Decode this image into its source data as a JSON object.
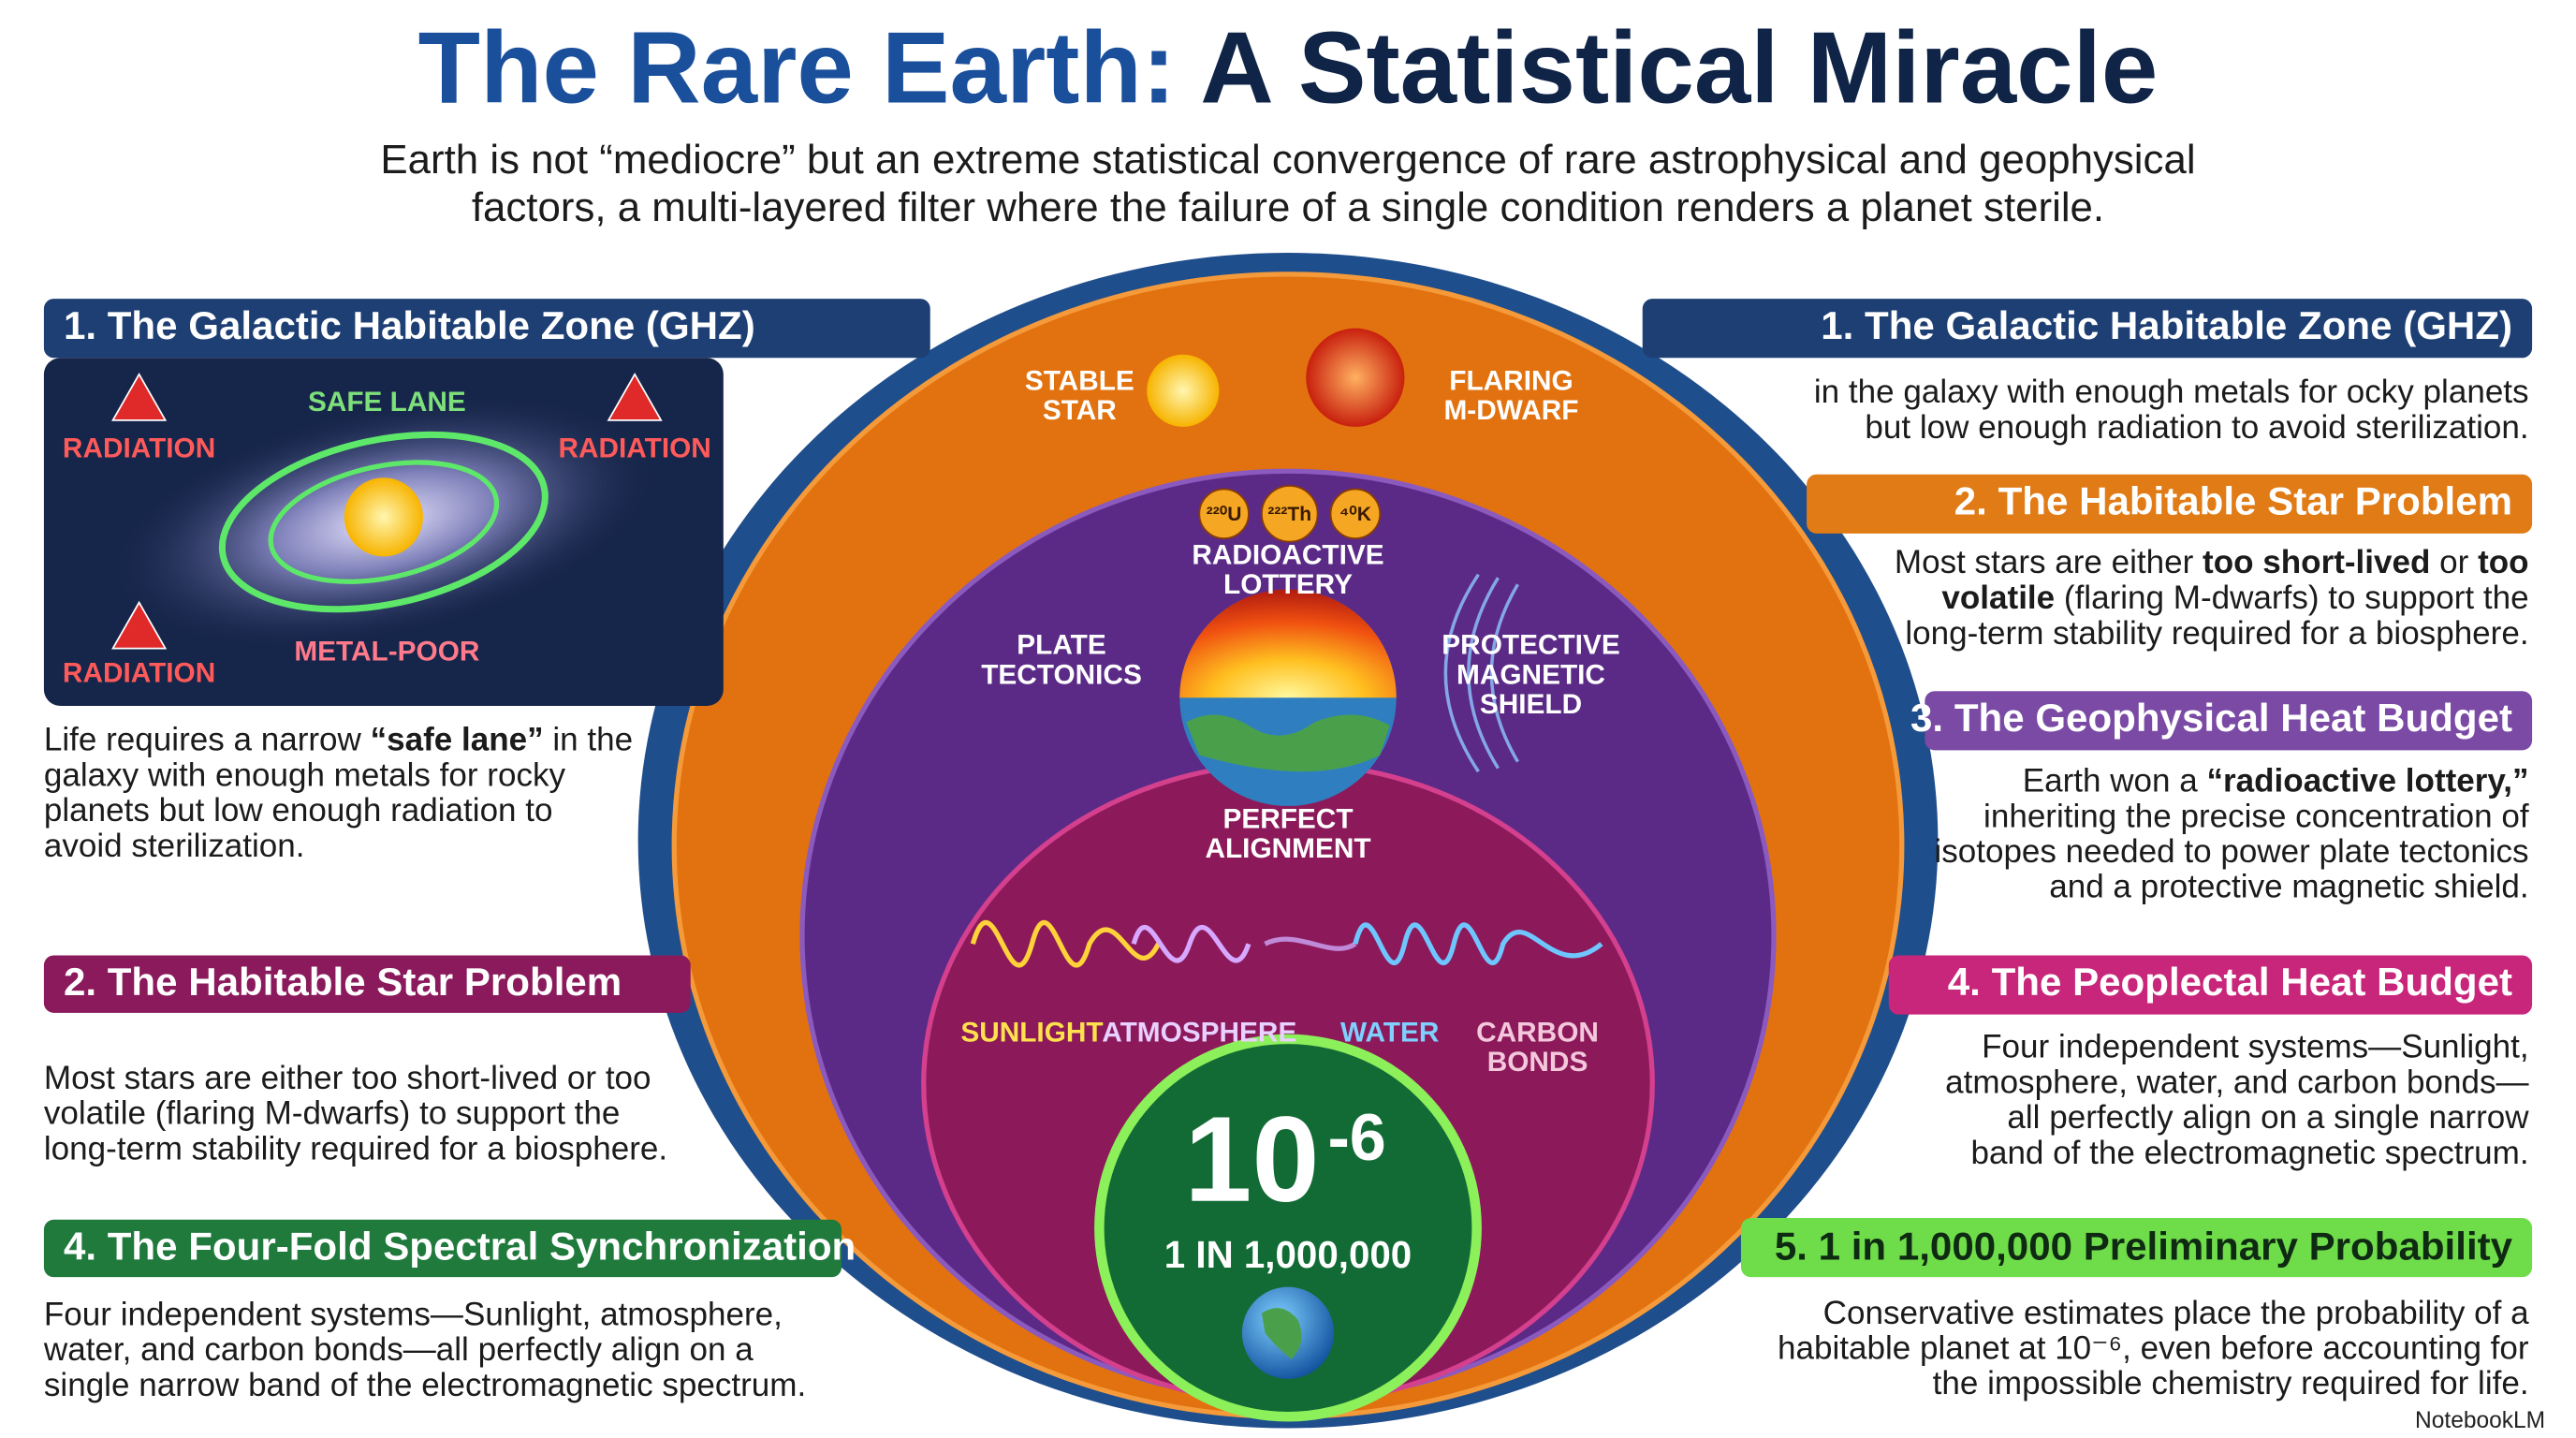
{
  "header": {
    "title": [
      "The Rare Earth:",
      "A Statistical Miracle"
    ],
    "subtitle": [
      "Earth is not “mediocre” but an extreme statistical convergence of rare astrophysical and geophysical",
      "factors, a multi-layered filter where the failure of a single condition renders a planet sterile."
    ]
  },
  "left_panels": [
    {
      "title": "1. The Galactic Habitable Zone (GHZ)",
      "lines": [
        [
          "Life requires a narrow ",
          "“safe lane”",
          " in the"
        ],
        "galaxy with enough metals for rocky",
        "planets but low enough radiation to",
        "avoid sterilization."
      ]
    },
    {
      "title": "2. The Habitable Star Problem",
      "lines": [
        "Most stars are either too short-lived or too",
        "volatile (flaring M-dwarfs) to support the",
        "long-term stability required for a biosphere."
      ]
    },
    {
      "title": "4. The Four-Fold Spectral Synchronization",
      "lines": [
        "Four independent systems—Sunlight, atmosphere,",
        "water, and carbon bonds—all perfectly align on a",
        "single narrow band of the electromagnetic spectrum."
      ]
    }
  ],
  "right_panels": [
    {
      "title": "1. The Galactic Habitable Zone (GHZ)",
      "lines": [
        "in the galaxy with enough metals for ocky planets",
        "but low enough radiation to avoid sterilization."
      ]
    },
    {
      "title": "2. The Habitable Star Problem",
      "lines": [
        [
          "Most stars are either ",
          "too short-lived",
          " or ",
          "too"
        ],
        [
          "",
          "volatile",
          " (flaring M-dwarfs) to support the"
        ],
        "long-term stability required for a biosphere."
      ]
    },
    {
      "title": "3. The Geophysical Heat Budget",
      "lines": [
        [
          "Earth won a ",
          "“radioactive lottery,”"
        ],
        "inheriting the precise concentration of",
        "isotopes needed to power plate tectonics",
        "and a protective magnetic shield."
      ]
    },
    {
      "title": "4. The Peoplectal Heat Budget",
      "lines": [
        "Four independent systems—Sunlight,",
        "atmosphere, water, and carbon bonds—",
        "all perfectly align on a single narrow",
        "band of the electromagnetic spectrum."
      ]
    },
    {
      "title": "5. 1 in 1,000,000 Preliminary Probability",
      "lines": [
        "Conservative estimates place the probability of a",
        "habitable planet at 10⁻⁶, even before accounting for",
        "the impossible chemistry required for life."
      ]
    }
  ],
  "galaxy": {
    "safe_lane": "SAFE LANE",
    "radiation": [
      "RADIATION",
      "RADIATION",
      "RADIATION"
    ],
    "metal_poor": "METAL-POOR"
  },
  "center": {
    "stable_star": [
      "STABLE",
      "STAR"
    ],
    "flaring": [
      "FLARING",
      "M-DWARF"
    ],
    "isotopes": [
      "²²⁰U",
      "²²²Th",
      "⁴⁰K"
    ],
    "radioactive": [
      "RADIOACTIVE",
      "LOTTERY"
    ],
    "plate": [
      "PLATE",
      "TECTONICS"
    ],
    "shield": [
      "PROTECTIVE",
      "MAGNETIC",
      "SHIELD"
    ],
    "alignment": [
      "PERFECT",
      "ALIGNMENT"
    ],
    "sunlight": "SUNLIGHT",
    "atmosphere": "ATMOSPHERE",
    "water": "WATER",
    "carbon": [
      "CARBON",
      "BONDS"
    ],
    "probability": {
      "base": "10",
      "exponent": "-6"
    },
    "odds": "1 IN 1,000,000"
  },
  "footer": {
    "brand": "NotebookLM"
  }
}
